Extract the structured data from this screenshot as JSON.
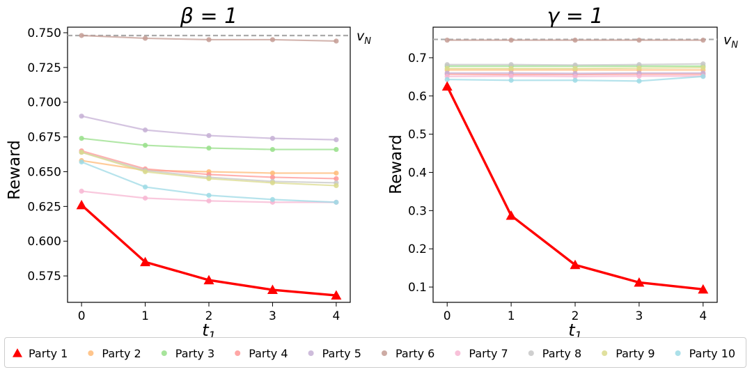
{
  "chart_data": [
    {
      "type": "line",
      "title": "β = 1",
      "xlabel": "t1",
      "ylabel": "Reward",
      "x": [
        0,
        1,
        2,
        3,
        4
      ],
      "xticks": [
        "0",
        "1",
        "2",
        "3",
        "4"
      ],
      "ylim": [
        0.556,
        0.754
      ],
      "yticks": [
        0.575,
        0.6,
        0.625,
        0.65,
        0.675,
        0.7,
        0.725,
        0.75
      ],
      "ytick_labels": [
        "0.575",
        "0.600",
        "0.625",
        "0.650",
        "0.675",
        "0.700",
        "0.725",
        "0.750"
      ],
      "reference_line": {
        "label": "v_N",
        "value": 0.748,
        "color": "#aaaaaa"
      },
      "series": [
        {
          "name": "Party 1",
          "color": "#ff0000",
          "values": [
            0.626,
            0.585,
            0.572,
            0.565,
            0.561
          ]
        },
        {
          "name": "Party 2",
          "color": "#ffbb78",
          "values": [
            0.658,
            0.651,
            0.65,
            0.649,
            0.649
          ]
        },
        {
          "name": "Party 3",
          "color": "#98df8a",
          "values": [
            0.674,
            0.669,
            0.667,
            0.666,
            0.666
          ]
        },
        {
          "name": "Party 4",
          "color": "#ff9896",
          "values": [
            0.665,
            0.652,
            0.648,
            0.646,
            0.645
          ]
        },
        {
          "name": "Party 5",
          "color": "#c5b0d5",
          "values": [
            0.69,
            0.68,
            0.676,
            0.674,
            0.673
          ]
        },
        {
          "name": "Party 6",
          "color": "#c49c94",
          "values": [
            0.748,
            0.746,
            0.745,
            0.745,
            0.744
          ]
        },
        {
          "name": "Party 7",
          "color": "#f7b6d2",
          "values": [
            0.636,
            0.631,
            0.629,
            0.628,
            0.628
          ]
        },
        {
          "name": "Party 8",
          "color": "#c7c7c7",
          "values": [
            0.664,
            0.651,
            0.646,
            0.643,
            0.642
          ]
        },
        {
          "name": "Party 9",
          "color": "#dbdb8d",
          "values": [
            0.664,
            0.65,
            0.645,
            0.642,
            0.64
          ]
        },
        {
          "name": "Party 10",
          "color": "#9edae5",
          "values": [
            0.657,
            0.639,
            0.633,
            0.63,
            0.628
          ]
        }
      ]
    },
    {
      "type": "line",
      "title": "γ = 1",
      "xlabel": "t1",
      "ylabel": "Reward",
      "x": [
        0,
        1,
        2,
        3,
        4
      ],
      "xticks": [
        "0",
        "1",
        "2",
        "3",
        "4"
      ],
      "ylim": [
        0.06,
        0.78
      ],
      "yticks": [
        0.1,
        0.2,
        0.3,
        0.4,
        0.5,
        0.6,
        0.7
      ],
      "ytick_labels": [
        "0.1",
        "0.2",
        "0.3",
        "0.4",
        "0.5",
        "0.6",
        "0.7"
      ],
      "reference_line": {
        "label": "v_N",
        "value": 0.748,
        "color": "#aaaaaa"
      },
      "series": [
        {
          "name": "Party 1",
          "color": "#ff0000",
          "values": [
            0.625,
            0.287,
            0.158,
            0.112,
            0.094
          ]
        },
        {
          "name": "Party 2",
          "color": "#ffbb78",
          "values": [
            0.668,
            0.668,
            0.668,
            0.668,
            0.668
          ]
        },
        {
          "name": "Party 3",
          "color": "#98df8a",
          "values": [
            0.678,
            0.678,
            0.678,
            0.678,
            0.678
          ]
        },
        {
          "name": "Party 4",
          "color": "#ff9896",
          "values": [
            0.657,
            0.656,
            0.656,
            0.657,
            0.657
          ]
        },
        {
          "name": "Party 5",
          "color": "#c5b0d5",
          "values": [
            0.66,
            0.66,
            0.659,
            0.66,
            0.66
          ]
        },
        {
          "name": "Party 6",
          "color": "#c49c94",
          "values": [
            0.746,
            0.746,
            0.746,
            0.746,
            0.746
          ]
        },
        {
          "name": "Party 7",
          "color": "#f7b6d2",
          "values": [
            0.651,
            0.652,
            0.651,
            0.652,
            0.652
          ]
        },
        {
          "name": "Party 8",
          "color": "#c7c7c7",
          "values": [
            0.682,
            0.682,
            0.681,
            0.682,
            0.684
          ]
        },
        {
          "name": "Party 9",
          "color": "#dbdb8d",
          "values": [
            0.672,
            0.672,
            0.672,
            0.673,
            0.674
          ]
        },
        {
          "name": "Party 10",
          "color": "#9edae5",
          "values": [
            0.643,
            0.641,
            0.641,
            0.639,
            0.651
          ]
        }
      ]
    }
  ],
  "legend": {
    "entries": [
      {
        "label": "Party 1",
        "color": "#ff0000",
        "marker": "triangle"
      },
      {
        "label": "Party 2",
        "color": "#ffbb78",
        "marker": "circle"
      },
      {
        "label": "Party 3",
        "color": "#98df8a",
        "marker": "circle"
      },
      {
        "label": "Party 4",
        "color": "#ff9896",
        "marker": "circle"
      },
      {
        "label": "Party 5",
        "color": "#c5b0d5",
        "marker": "circle"
      },
      {
        "label": "Party 6",
        "color": "#c49c94",
        "marker": "circle"
      },
      {
        "label": "Party 7",
        "color": "#f7b6d2",
        "marker": "circle"
      },
      {
        "label": "Party 8",
        "color": "#c7c7c7",
        "marker": "circle"
      },
      {
        "label": "Party 9",
        "color": "#dbdb8d",
        "marker": "circle"
      },
      {
        "label": "Party 10",
        "color": "#9edae5",
        "marker": "circle"
      }
    ]
  }
}
